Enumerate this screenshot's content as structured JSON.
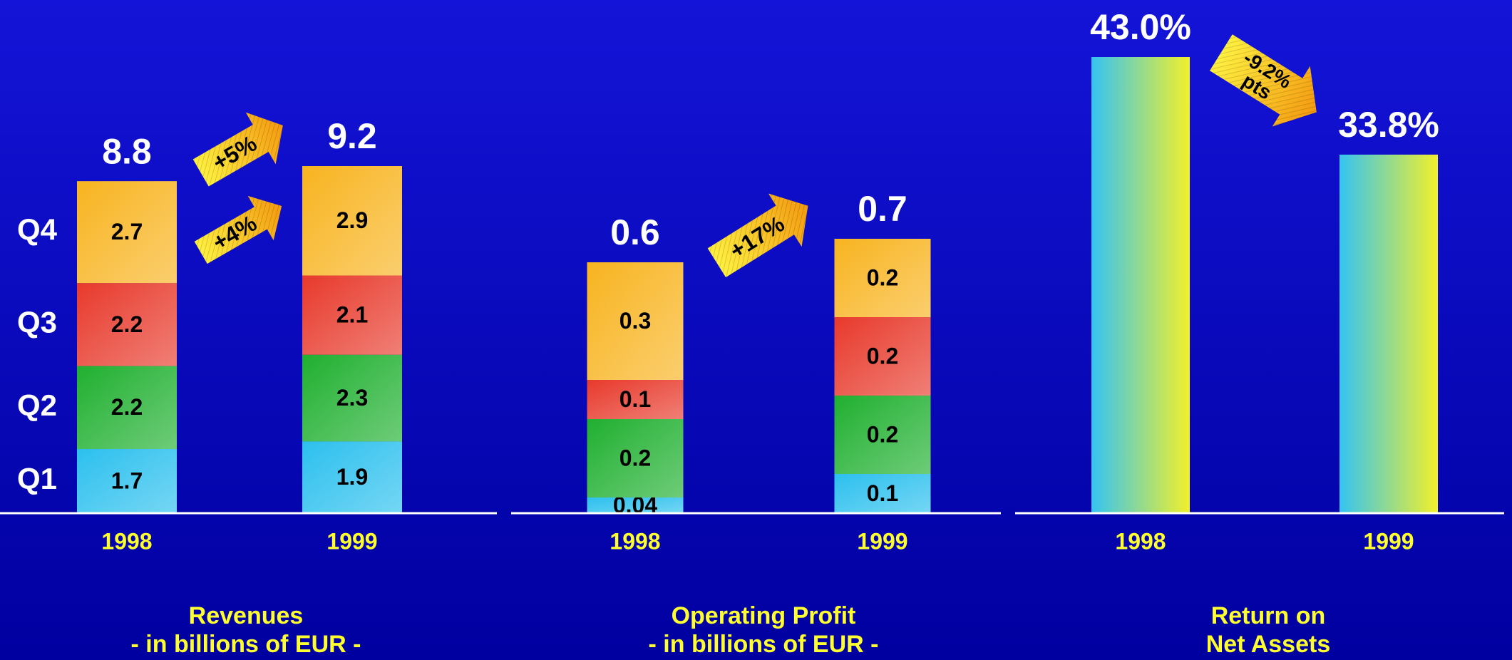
{
  "chart_data": [
    {
      "type": "stacked_bar",
      "title": [
        "Revenues",
        "- in billions of EUR -"
      ],
      "categories": [
        "1998",
        "1999"
      ],
      "series": [
        {
          "name": "Q1",
          "color": "#2cc0ee",
          "values": [
            1.7,
            1.9
          ]
        },
        {
          "name": "Q2",
          "color": "#20b030",
          "values": [
            2.2,
            2.3
          ]
        },
        {
          "name": "Q3",
          "color": "#e83a2c",
          "values": [
            2.2,
            2.1
          ]
        },
        {
          "name": "Q4",
          "color": "#f8b420",
          "values": [
            2.7,
            2.9
          ]
        }
      ],
      "totals": [
        8.8,
        9.2
      ],
      "annotations": [
        "+5%",
        "+4%"
      ]
    },
    {
      "type": "stacked_bar",
      "title": [
        "Operating Profit",
        "- in billions of EUR -"
      ],
      "categories": [
        "1998",
        "1999"
      ],
      "series": [
        {
          "color": "#2cc0ee",
          "values": [
            0.04,
            0.1
          ]
        },
        {
          "color": "#20b030",
          "values": [
            0.2,
            0.2
          ]
        },
        {
          "color": "#e83a2c",
          "values": [
            0.1,
            0.2
          ]
        },
        {
          "color": "#f8b420",
          "values": [
            0.3,
            0.2
          ]
        }
      ],
      "totals": [
        0.6,
        0.7
      ],
      "annotations": [
        "+17%"
      ]
    },
    {
      "type": "bar",
      "title": [
        "Return on",
        "Net Assets"
      ],
      "categories": [
        "1998",
        "1999"
      ],
      "values": [
        43.0,
        33.8
      ],
      "value_labels": [
        "43.0%",
        "33.8%"
      ],
      "colors": [
        "#34c4f2",
        "#f2f02a"
      ],
      "annotations": [
        "-9.2%",
        "pts"
      ]
    }
  ]
}
